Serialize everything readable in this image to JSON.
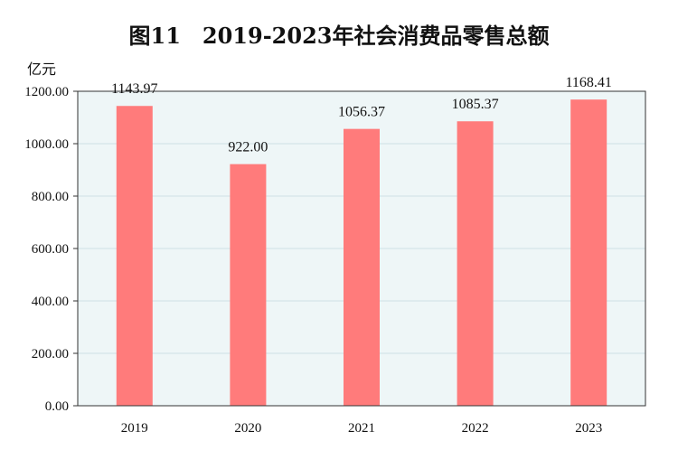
{
  "chart_data": {
    "type": "bar",
    "title": "图11　2019-2023年社会消费品零售总额",
    "unit_label": "亿元",
    "categories": [
      "2019",
      "2020",
      "2021",
      "2022",
      "2023"
    ],
    "values": [
      1143.97,
      922.0,
      1056.37,
      1085.37,
      1168.41
    ],
    "value_labels": [
      "1143.97",
      "922.00",
      "1056.37",
      "1085.37",
      "1168.41"
    ],
    "ylim": [
      0,
      1200
    ],
    "yticks": [
      0,
      200,
      400,
      600,
      800,
      1000,
      1200
    ],
    "ytick_labels": [
      "0.00",
      "200.00",
      "400.00",
      "600.00",
      "800.00",
      "1000.00",
      "1200.00"
    ],
    "grid": true,
    "colors": {
      "bar": "#FF7B7B",
      "plot_bg": "#EEF6F7",
      "grid": "#CFE0E4",
      "axis": "#333333"
    }
  }
}
